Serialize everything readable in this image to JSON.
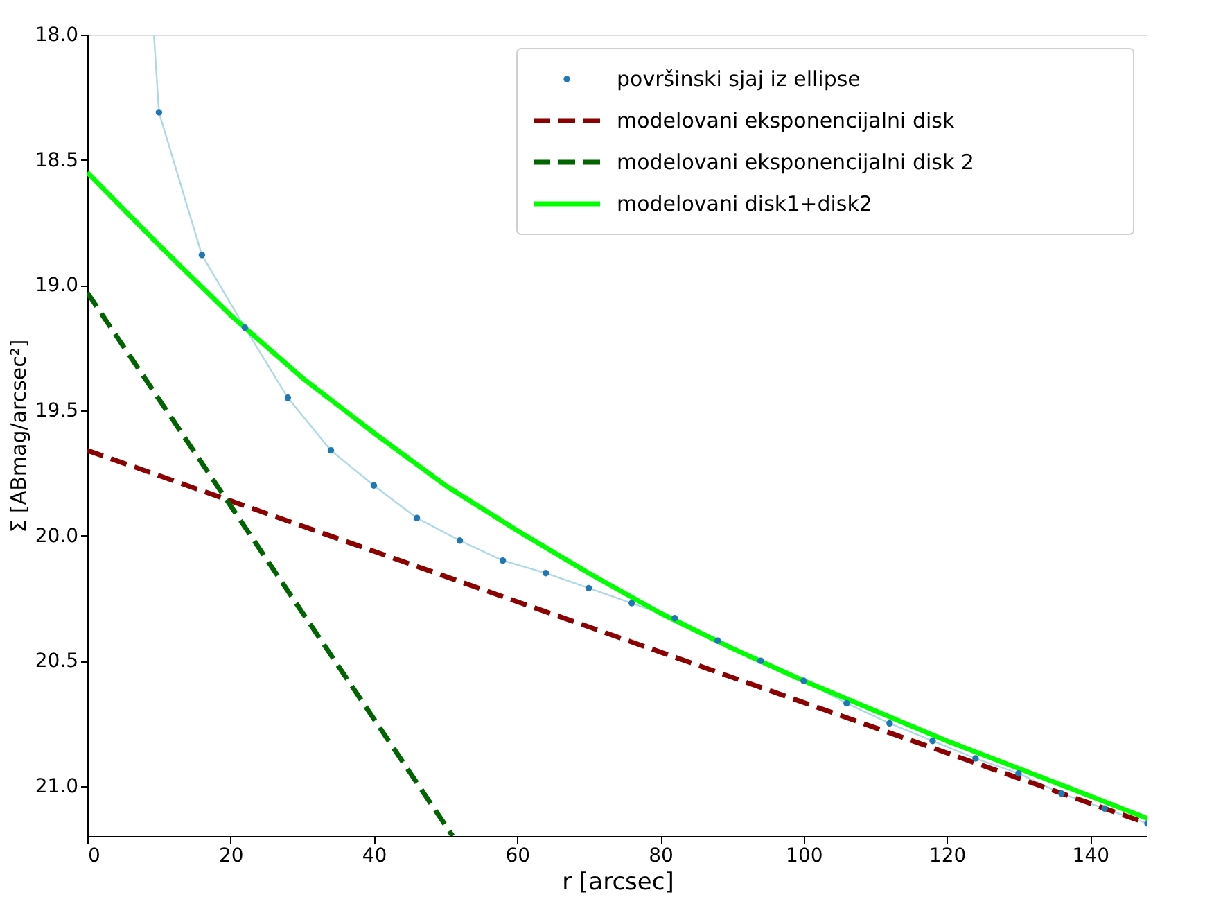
{
  "chart_data": {
    "type": "scatter",
    "xlabel": "r [arcsec]",
    "ylabel": "Σ [ABmag/arcsec²]",
    "xlim": [
      0,
      148
    ],
    "ylim": [
      21.2,
      18.0
    ],
    "xticks": [
      0,
      20,
      40,
      60,
      80,
      100,
      120,
      140
    ],
    "yticks": [
      {
        "value": 18,
        "label": "18.0"
      },
      {
        "value": 18.5,
        "label": "18.5"
      },
      {
        "value": 19,
        "label": "19.0"
      },
      {
        "value": 19.5,
        "label": "19.5"
      },
      {
        "value": 20,
        "label": "20.0"
      },
      {
        "value": 20.5,
        "label": "20.5"
      },
      {
        "value": 21,
        "label": "21.0"
      }
    ],
    "grid": false,
    "legend": "top right",
    "series": [
      {
        "type": "line",
        "color": "#add8e6",
        "line_style": "solid",
        "marker": "none",
        "x": [
          9.3,
          10,
          16,
          22,
          28,
          34,
          40,
          46,
          52,
          58,
          64,
          70,
          76,
          82,
          88,
          94,
          100,
          106,
          112,
          118,
          124,
          130,
          136,
          142,
          148
        ],
        "values": [
          18.0,
          18.31,
          18.88,
          19.17,
          19.45,
          19.66,
          19.8,
          19.93,
          20.02,
          20.1,
          20.15,
          20.21,
          20.27,
          20.33,
          20.42,
          20.5,
          20.58,
          20.67,
          20.75,
          20.82,
          20.89,
          20.95,
          21.03,
          21.09,
          21.15
        ]
      },
      {
        "name": "površinski sjaj iz ellipse",
        "color": "#1f77b4",
        "marker": "circle",
        "x": [
          10,
          16,
          22,
          28,
          34,
          40,
          46,
          52,
          58,
          64,
          70,
          76,
          82,
          88,
          94,
          100,
          106,
          112,
          118,
          124,
          130,
          136,
          142,
          148
        ],
        "values": [
          18.31,
          18.88,
          19.17,
          19.45,
          19.66,
          19.8,
          19.93,
          20.02,
          20.1,
          20.15,
          20.21,
          20.27,
          20.33,
          20.42,
          20.5,
          20.58,
          20.67,
          20.75,
          20.82,
          20.89,
          20.95,
          21.03,
          21.09,
          21.15
        ]
      },
      {
        "type": "line",
        "name": "modelovani eksponencijalni disk",
        "color": "#8b0000",
        "line_style": "dashed",
        "marker": "none",
        "x": [
          0,
          148
        ],
        "values": [
          19.66,
          21.15
        ]
      },
      {
        "type": "line",
        "name": "modelovani eksponencijalni disk 2",
        "color": "#006400",
        "line_style": "dashed",
        "marker": "none",
        "x": [
          0,
          51
        ],
        "values": [
          19.03,
          21.2
        ]
      },
      {
        "type": "line",
        "name": "modelovani disk1+disk2",
        "color": "#00ff00",
        "line_style": "solid",
        "marker": "none",
        "x": [
          0,
          10,
          20,
          30,
          40,
          50,
          60,
          70,
          80,
          90,
          100,
          120,
          140,
          148
        ],
        "values": [
          18.55,
          18.84,
          19.12,
          19.37,
          19.59,
          19.8,
          19.98,
          20.15,
          20.31,
          20.45,
          20.58,
          20.82,
          21.04,
          21.13
        ]
      }
    ]
  }
}
